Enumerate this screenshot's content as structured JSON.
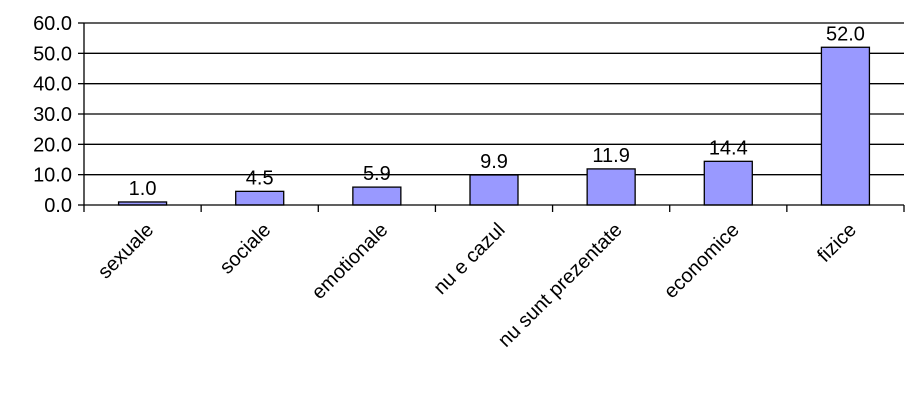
{
  "chart_data": {
    "type": "bar",
    "categories": [
      "sexuale",
      "sociale",
      "emotionale",
      "nu e cazul",
      "nu sunt prezentate",
      "economice",
      "fizice"
    ],
    "values": [
      1.0,
      4.5,
      5.9,
      9.9,
      11.9,
      14.4,
      52.0
    ],
    "data_labels": [
      "1.0",
      "4.5",
      "5.9",
      "9.9",
      "11.9",
      "14.4",
      "52.0"
    ],
    "yticks": [
      "0.0",
      "10.0",
      "20.0",
      "30.0",
      "40.0",
      "50.0",
      "60.0"
    ],
    "ylim": [
      0,
      60
    ],
    "title": "",
    "xlabel": "",
    "ylabel": "",
    "grid": true,
    "legend": "none",
    "colors": {
      "bar_fill": "#9999ff",
      "bar_stroke": "#000000",
      "grid": "#000000",
      "axis": "#000000",
      "text": "#000000"
    }
  }
}
